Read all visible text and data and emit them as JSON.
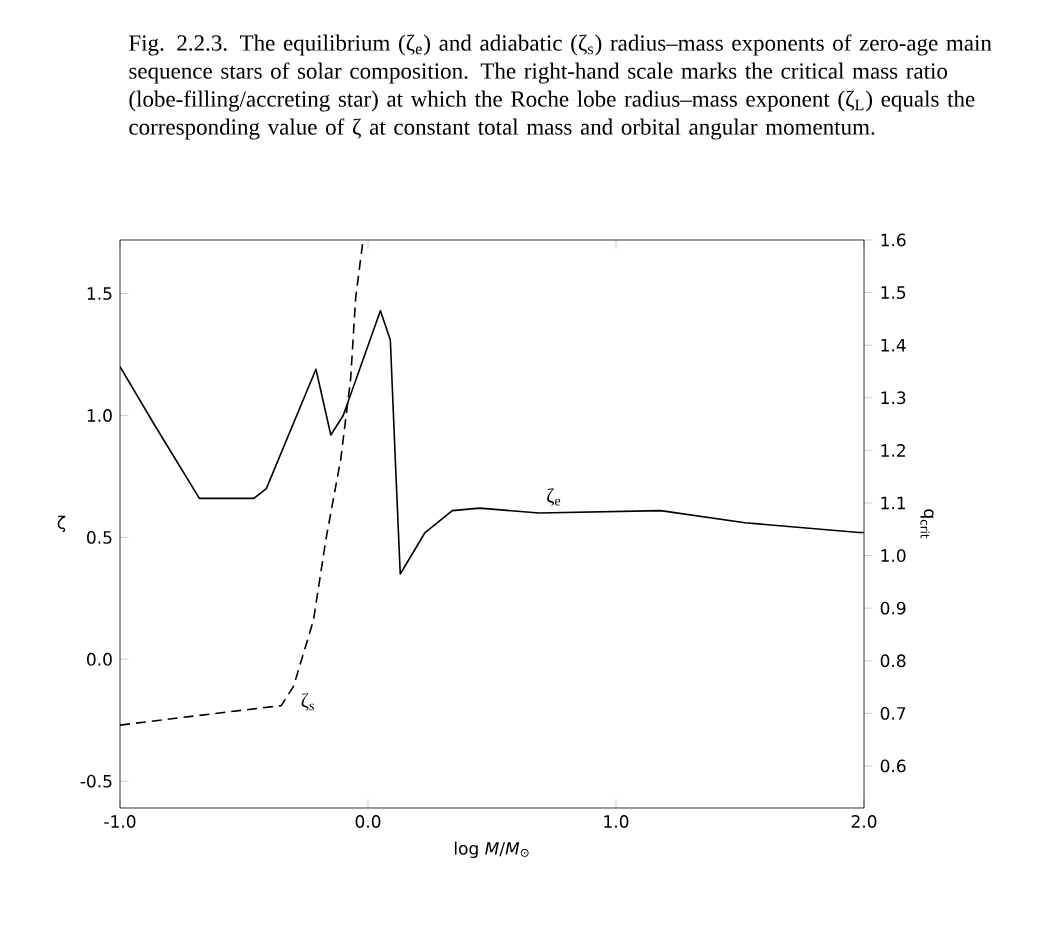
{
  "chart_data": {
    "type": "line",
    "title": "Fig. 2.2.3. The equilibrium (ζ$_{e}$) and adiabatic (ζ$_{s}$) radius–mass exponents of zero-age main sequence stars of solar composition. The right-hand scale marks the critical mass ratio (lobe-filling/accreting star) at which the Roche lobe radius–mass exponent (ζ$_{L}$) equals the corresponding value of ζ at constant total mass and orbital angular momentum.",
    "xlabel": "log *M*/*M*$_{⊙}$",
    "ylabel": "ζ",
    "y2label": "q$_{crit}$",
    "xlim": [
      -1.0,
      2.0
    ],
    "xticks": [
      {
        "value": -1,
        "label": "-1.0"
      },
      {
        "value": 0,
        "label": "0.0"
      },
      {
        "value": 1,
        "label": "1.0"
      },
      {
        "value": 2,
        "label": "2.0"
      }
    ],
    "ylim": [
      -0.61,
      1.72
    ],
    "yticks": [
      -0.5,
      {
        "value": 0,
        "label": "0.0"
      },
      0.5,
      {
        "value": 1,
        "label": "1.0"
      },
      1.5
    ],
    "y2lim": [
      0.52,
      1.6
    ],
    "y2ticks": [
      0.6,
      0.7,
      0.8,
      0.9,
      {
        "value": 1,
        "label": "1.0"
      },
      1.1,
      1.2,
      1.3,
      1.4,
      1.5,
      1.6
    ],
    "series": [
      {
        "name": "ζ$_{e}$",
        "color": "#000000",
        "line_style": "solid",
        "x": [
          -1.0,
          -0.86,
          -0.68,
          -0.46,
          -0.41,
          -0.21,
          -0.15,
          -0.1,
          0.05,
          0.09,
          0.11,
          0.13,
          0.23,
          0.34,
          0.45,
          0.69,
          1.18,
          1.52,
          1.98,
          2.0
        ],
        "values": [
          1.2,
          0.96,
          0.66,
          0.66,
          0.7,
          1.19,
          0.92,
          1.0,
          1.43,
          1.31,
          0.82,
          0.35,
          0.52,
          0.61,
          0.62,
          0.6,
          0.61,
          0.56,
          0.52,
          0.52
        ]
      },
      {
        "name": "ζ$_{s}$",
        "color": "#000000",
        "line_style": "dashed",
        "x": [
          -1.0,
          -0.68,
          -0.35,
          -0.3,
          -0.22,
          -0.17,
          -0.11,
          -0.07,
          -0.05,
          -0.03,
          -0.02
        ],
        "values": [
          -0.27,
          -0.23,
          -0.19,
          -0.11,
          0.16,
          0.49,
          0.82,
          1.15,
          1.48,
          1.64,
          1.72
        ]
      }
    ]
  }
}
